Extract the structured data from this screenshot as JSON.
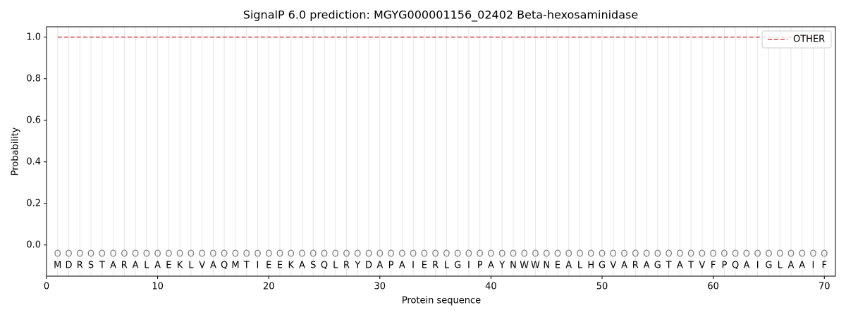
{
  "chart_data": {
    "type": "line",
    "title": "SignalP 6.0 prediction: MGYG000001156_02402 Beta-hexosaminidase",
    "xlabel": "Protein sequence",
    "ylabel": "Probability",
    "x": [
      1,
      2,
      3,
      4,
      5,
      6,
      7,
      8,
      9,
      10,
      11,
      12,
      13,
      14,
      15,
      16,
      17,
      18,
      19,
      20,
      21,
      22,
      23,
      24,
      25,
      26,
      27,
      28,
      29,
      30,
      31,
      32,
      33,
      34,
      35,
      36,
      37,
      38,
      39,
      40,
      41,
      42,
      43,
      44,
      45,
      46,
      47,
      48,
      49,
      50,
      51,
      52,
      53,
      54,
      55,
      56,
      57,
      58,
      59,
      60,
      61,
      62,
      63,
      64,
      65,
      66,
      67,
      68,
      69,
      70
    ],
    "residues": [
      "M",
      "D",
      "R",
      "S",
      "T",
      "A",
      "R",
      "A",
      "L",
      "A",
      "E",
      "K",
      "L",
      "V",
      "A",
      "Q",
      "M",
      "T",
      "I",
      "E",
      "E",
      "K",
      "A",
      "S",
      "Q",
      "L",
      "R",
      "Y",
      "D",
      "A",
      "P",
      "A",
      "I",
      "E",
      "R",
      "L",
      "G",
      "I",
      "P",
      "A",
      "Y",
      "N",
      "W",
      "W",
      "N",
      "E",
      "A",
      "L",
      "H",
      "G",
      "V",
      "A",
      "R",
      "A",
      "G",
      "T",
      "A",
      "T",
      "V",
      "F",
      "P",
      "Q",
      "A",
      "I",
      "G",
      "L",
      "A",
      "A",
      "I",
      "F"
    ],
    "predicted_labels": [
      "O",
      "O",
      "O",
      "O",
      "O",
      "O",
      "O",
      "O",
      "O",
      "O",
      "O",
      "O",
      "O",
      "O",
      "O",
      "O",
      "O",
      "O",
      "O",
      "O",
      "O",
      "O",
      "O",
      "O",
      "O",
      "O",
      "O",
      "O",
      "O",
      "O",
      "O",
      "O",
      "O",
      "O",
      "O",
      "O",
      "O",
      "O",
      "O",
      "O",
      "O",
      "O",
      "O",
      "O",
      "O",
      "O",
      "O",
      "O",
      "O",
      "O",
      "O",
      "O",
      "O",
      "O",
      "O",
      "O",
      "O",
      "O",
      "O",
      "O",
      "O",
      "O",
      "O",
      "O",
      "O",
      "O",
      "O",
      "O",
      "O",
      "O"
    ],
    "series": [
      {
        "name": "OTHER",
        "color": "#e87878",
        "dash": true,
        "values": [
          1,
          1,
          1,
          1,
          1,
          1,
          1,
          1,
          1,
          1,
          1,
          1,
          1,
          1,
          1,
          1,
          1,
          1,
          1,
          1,
          1,
          1,
          1,
          1,
          1,
          1,
          1,
          1,
          1,
          1,
          1,
          1,
          1,
          1,
          1,
          1,
          1,
          1,
          1,
          1,
          1,
          1,
          1,
          1,
          1,
          1,
          1,
          1,
          1,
          1,
          1,
          1,
          1,
          1,
          1,
          1,
          1,
          1,
          1,
          1,
          1,
          1,
          1,
          1,
          1,
          1,
          1,
          1,
          1,
          1
        ]
      }
    ],
    "xlim": [
      0,
      71
    ],
    "ylim": [
      -0.15,
      1.05
    ],
    "xticks": [
      0,
      10,
      20,
      30,
      40,
      50,
      60,
      70
    ],
    "yticks": [
      {
        "value": 0,
        "label": "0.0"
      },
      {
        "value": 0.2,
        "label": "0.2"
      },
      {
        "value": 0.4,
        "label": "0.4"
      },
      {
        "value": 0.6,
        "label": "0.6"
      },
      {
        "value": 0.8,
        "label": "0.8"
      },
      {
        "value": 1,
        "label": "1.0"
      }
    ],
    "legend": "upper right"
  }
}
